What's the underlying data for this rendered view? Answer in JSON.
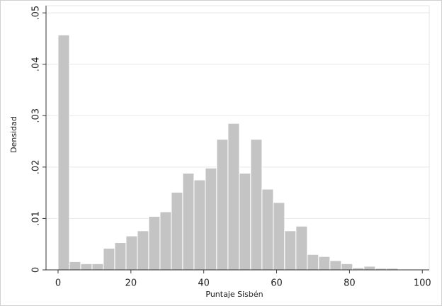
{
  "chart_data": {
    "type": "histogram",
    "x_label": "Puntaje Sisbén",
    "y_label": "Densidad",
    "bins": [
      0,
      3.11,
      6.22,
      9.33,
      12.44,
      15.55,
      18.66,
      21.77,
      24.88,
      27.99,
      31.1,
      34.21,
      37.32,
      40.43,
      43.54,
      46.65,
      49.76,
      52.87,
      55.98,
      59.09,
      62.2,
      65.31,
      68.42,
      71.53,
      74.64,
      77.75,
      80.86,
      83.97,
      87.08,
      90.19,
      93.3
    ],
    "values": [
      0.0457,
      0.0016,
      0.0012,
      0.0012,
      0.0042,
      0.0053,
      0.0066,
      0.0076,
      0.0104,
      0.0113,
      0.0151,
      0.0188,
      0.0175,
      0.0198,
      0.0254,
      0.0285,
      0.0188,
      0.0254,
      0.0157,
      0.0131,
      0.0076,
      0.0085,
      0.003,
      0.0026,
      0.0018,
      0.0012,
      0.0004,
      0.0007,
      0.0003,
      0.0003
    ],
    "color": "#c4c4c4",
    "xlim": [
      -3.3,
      101.9
    ],
    "ylim": [
      0,
      0.0514
    ],
    "xticks": [
      0,
      20,
      40,
      60,
      80,
      100
    ],
    "yticks": [
      0,
      {
        "value": 0.01,
        "label": ".01"
      },
      {
        "value": 0.02,
        "label": ".02"
      },
      {
        "value": 0.03,
        "label": ".03"
      },
      {
        "value": 0.04,
        "label": ".04"
      },
      {
        "value": 0.05,
        "label": ".05"
      }
    ],
    "grid": true
  }
}
